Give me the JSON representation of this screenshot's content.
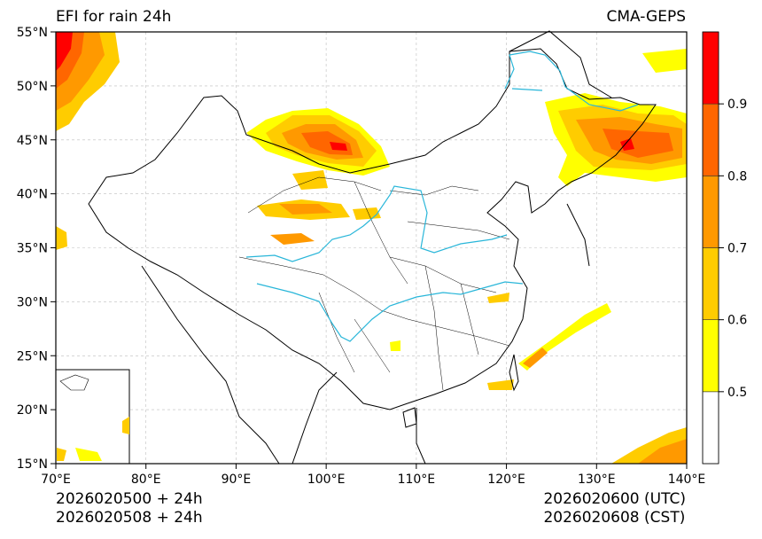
{
  "header": {
    "title": "EFI for rain 24h",
    "model": "CMA-GEPS"
  },
  "map": {
    "lon_range": [
      70,
      140
    ],
    "lat_range": [
      15,
      55
    ],
    "lon_ticks": [
      "70°E",
      "80°E",
      "90°E",
      "100°E",
      "110°E",
      "120°E",
      "130°E",
      "140°E"
    ],
    "lat_ticks": [
      "55°N",
      "50°N",
      "45°N",
      "40°N",
      "35°N",
      "30°N",
      "25°N",
      "20°N",
      "15°N"
    ],
    "grid": true,
    "inset": "South China Sea (bottom-left)"
  },
  "colorbar": {
    "levels": [
      "0.5",
      "0.6",
      "0.7",
      "0.8",
      "0.9"
    ],
    "colors": [
      "#ffffff",
      "#ffff00",
      "#ffcc00",
      "#ff9900",
      "#ff6600",
      "#ff0000"
    ]
  },
  "footer": {
    "init_utc": "2026020500 + 24h",
    "init_cst": "2026020508 + 24h",
    "valid_utc": "2026020600 (UTC)",
    "valid_cst": "2026020608 (CST)"
  }
}
